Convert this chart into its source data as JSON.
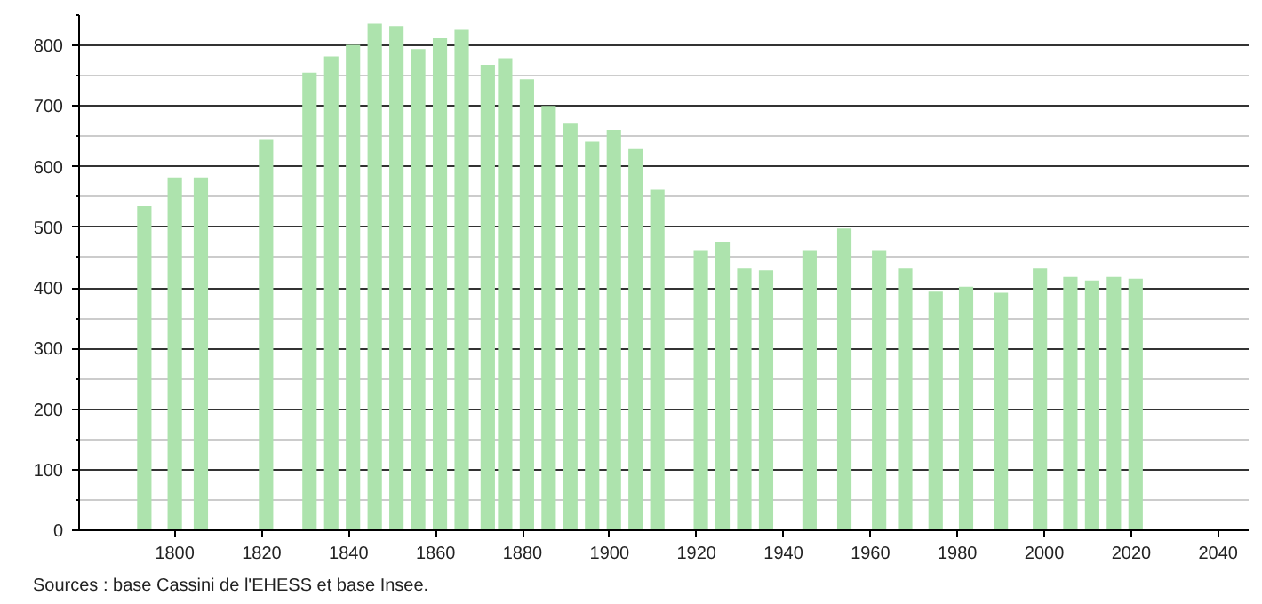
{
  "chart_data": {
    "type": "bar",
    "x": [
      1793,
      1800,
      1806,
      1821,
      1831,
      1836,
      1841,
      1846,
      1851,
      1856,
      1861,
      1866,
      1872,
      1876,
      1881,
      1886,
      1891,
      1896,
      1901,
      1906,
      1911,
      1921,
      1926,
      1931,
      1936,
      1946,
      1954,
      1962,
      1968,
      1975,
      1982,
      1990,
      1999,
      2006,
      2011,
      2016,
      2021
    ],
    "values": [
      535,
      582,
      582,
      644,
      755,
      782,
      801,
      836,
      832,
      794,
      812,
      826,
      768,
      779,
      744,
      700,
      671,
      641,
      661,
      629,
      562,
      461,
      476,
      432,
      429,
      461,
      498,
      461,
      432,
      394,
      402,
      392,
      432,
      418,
      412,
      418,
      415
    ],
    "color": "#ade3ad",
    "xlim": [
      1778,
      2047
    ],
    "xticks": [
      1800,
      1820,
      1840,
      1860,
      1880,
      1900,
      1920,
      1940,
      1960,
      1980,
      2000,
      2020,
      2040
    ],
    "ylim": [
      0,
      850
    ],
    "yticks": [
      0,
      100,
      200,
      300,
      400,
      500,
      600,
      700,
      800
    ],
    "grid": "y",
    "annotations": [
      "Sources : base Cassini de l'EHESS et base Insee."
    ]
  }
}
